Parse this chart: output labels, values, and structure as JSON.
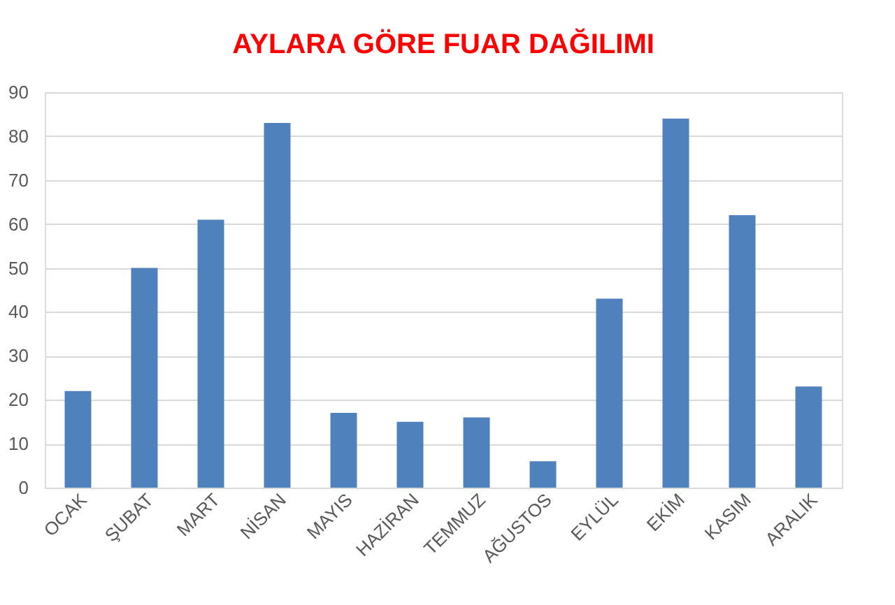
{
  "chart_data": {
    "type": "bar",
    "title": "AYLARA GÖRE FUAR DAĞILIMI",
    "categories": [
      "OCAK",
      "ŞUBAT",
      "MART",
      "NİSAN",
      "MAYIS",
      "HAZİRAN",
      "TEMMUZ",
      "AĞUSTOS",
      "EYLÜL",
      "EKİM",
      "KASIM",
      "ARALIK"
    ],
    "values": [
      22,
      50,
      61,
      83,
      17,
      15,
      16,
      6,
      43,
      84,
      62,
      23
    ],
    "color": "#4f81bd",
    "ylim": [
      0,
      90
    ],
    "yticks": [
      0,
      10,
      20,
      30,
      40,
      50,
      60,
      70,
      80,
      90
    ],
    "grid": "y"
  }
}
